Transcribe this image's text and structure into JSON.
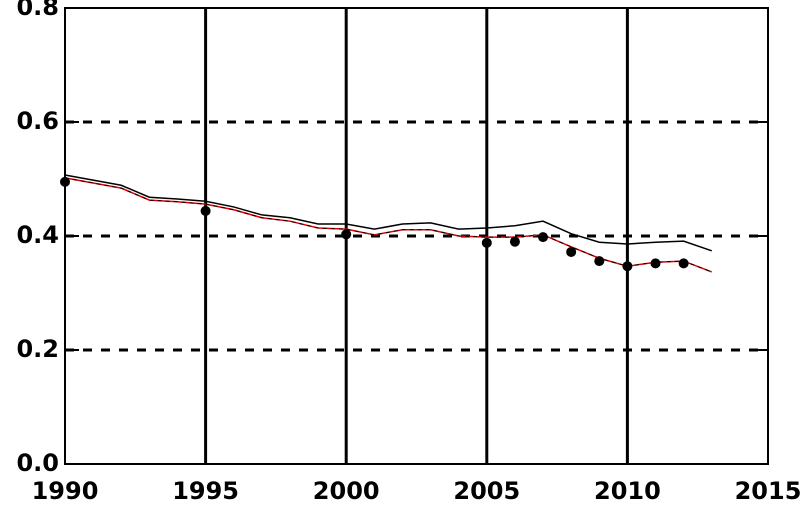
{
  "chart_data": {
    "type": "line",
    "x": [
      1990,
      1991,
      1992,
      1993,
      1994,
      1995,
      1996,
      1997,
      1998,
      1999,
      2000,
      2001,
      2002,
      2003,
      2004,
      2005,
      2006,
      2007,
      2008,
      2009,
      2010,
      2011,
      2012,
      2013
    ],
    "series": [
      {
        "color": "#000000",
        "style": "line",
        "values": [
          0.507,
          0.498,
          0.489,
          0.468,
          0.465,
          0.461,
          0.451,
          0.437,
          0.432,
          0.421,
          0.421,
          0.412,
          0.421,
          0.423,
          0.412,
          0.414,
          0.418,
          0.426,
          0.404,
          0.389,
          0.386,
          0.389,
          0.391,
          0.374
        ]
      },
      {
        "color": "#e00000",
        "overlay_dash_color": "#000000",
        "style": "line",
        "values": [
          0.502,
          0.493,
          0.484,
          0.463,
          0.46,
          0.456,
          0.446,
          0.432,
          0.426,
          0.414,
          0.412,
          0.402,
          0.411,
          0.411,
          0.4,
          0.398,
          0.398,
          0.402,
          0.381,
          0.361,
          0.347,
          0.354,
          0.356,
          0.337
        ]
      },
      {
        "color": "#000000",
        "style": "markers",
        "x": [
          1990,
          1995,
          2000,
          2005,
          2006,
          2007,
          2008,
          2009,
          2010,
          2011,
          2012
        ],
        "values": [
          0.495,
          0.444,
          0.403,
          0.388,
          0.39,
          0.398,
          0.372,
          0.356,
          0.347,
          0.352,
          0.352
        ]
      }
    ],
    "xlim": [
      1990,
      2015
    ],
    "xticks": [
      1990,
      1995,
      2000,
      2005,
      2010,
      2015
    ],
    "ylim": [
      0,
      0.8
    ],
    "yticks": [
      {
        "value": 0,
        "label": "0.0"
      },
      {
        "value": 0.2,
        "label": "0.2"
      },
      {
        "value": 0.4,
        "label": "0.4"
      },
      {
        "value": 0.6,
        "label": "0.6"
      },
      {
        "value": 0.8,
        "label": "0.8"
      }
    ],
    "grid": true
  }
}
